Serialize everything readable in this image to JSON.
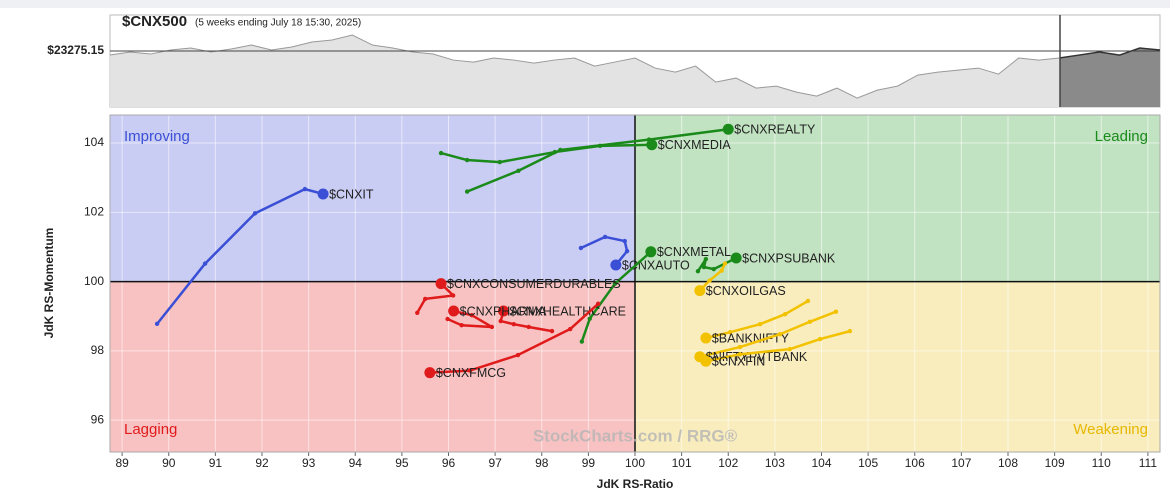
{
  "chart_data": [
    {
      "type": "line",
      "title": "$CNX500",
      "subtitle": "(5 weeks ending July 18 15:30, 2025)",
      "color": "#555555",
      "values": [
        23210,
        23258,
        23226,
        23290,
        23322,
        23258,
        23306,
        23370,
        23290,
        23338,
        23418,
        23450,
        23530,
        23370,
        23322,
        23258,
        23226,
        23130,
        23098,
        23162,
        23130,
        23082,
        23130,
        23162,
        23034,
        23098,
        23162,
        23002,
        22938,
        23034,
        22778,
        22842,
        22682,
        22714,
        22618,
        22554,
        22682,
        22522,
        22650,
        22714,
        22890,
        22938,
        22970,
        23002,
        22906,
        23162,
        23130,
        23162,
        23210,
        23258,
        23210,
        23322,
        23290
      ],
      "ylim": [
        22380,
        23850
      ],
      "reference_line": {
        "value": 23275.15,
        "label": "$23275.15"
      }
    },
    {
      "type": "rrg",
      "xlabel": "JdK RS-Ratio",
      "ylabel": "JdK RS-Momentum",
      "watermark": "StockCharts.com / RRG®",
      "xlim": [
        88.74,
        111.26
      ],
      "ylim": [
        95.08,
        104.81
      ],
      "xticks": [
        89,
        90,
        91,
        92,
        93,
        94,
        95,
        96,
        97,
        98,
        99,
        100,
        101,
        102,
        103,
        104,
        105,
        106,
        107,
        108,
        109,
        110,
        111
      ],
      "yticks": [
        96,
        98,
        100,
        102,
        104
      ],
      "grid": true,
      "center": {
        "x": 100,
        "y": 100
      },
      "quadrants": [
        {
          "name": "Improving",
          "corner": "top-left",
          "color": "#c9ccf3",
          "text_color": "#3a4fd6"
        },
        {
          "name": "Leading",
          "corner": "top-right",
          "color": "#c2e3c2",
          "text_color": "#1a8a1a"
        },
        {
          "name": "Lagging",
          "corner": "bottom-left",
          "color": "#f9c2c2",
          "text_color": "#e01b1b"
        },
        {
          "name": "Weakening",
          "corner": "bottom-right",
          "color": "#f9edbe",
          "text_color": "#e6b800"
        }
      ],
      "series": [
        {
          "name": "$CNXREALTY",
          "color": "#1a8a1a",
          "x": [
            96.4,
            97.5,
            98.4,
            100.3,
            102.0
          ],
          "y": [
            102.6,
            103.2,
            103.8,
            104.1,
            104.4
          ]
        },
        {
          "name": "$CNXMEDIA",
          "color": "#1a8a1a",
          "x": [
            95.84,
            96.4,
            97.1,
            98.28,
            99.25,
            100.36
          ],
          "y": [
            103.71,
            103.51,
            103.45,
            103.74,
            103.92,
            103.95
          ]
        },
        {
          "name": "$CNXIT",
          "color": "#3a4fd6",
          "x": [
            89.75,
            90.78,
            91.85,
            92.92,
            93.31
          ],
          "y": [
            98.78,
            100.52,
            101.97,
            102.67,
            102.53
          ]
        },
        {
          "name": "$CNXAUTO",
          "color": "#3a4fd6",
          "x": [
            98.84,
            99.36,
            99.78,
            99.83,
            99.59
          ],
          "y": [
            100.97,
            101.29,
            101.17,
            100.88,
            100.48
          ]
        },
        {
          "name": "$CNXMETAL",
          "color": "#1a8a1a",
          "x": [
            98.86,
            99.03,
            99.57,
            100.34
          ],
          "y": [
            98.27,
            98.93,
            99.94,
            100.86
          ]
        },
        {
          "name": "$CNXPSUBANK",
          "color": "#1a8a1a",
          "x": [
            101.35,
            101.52,
            101.48,
            101.69,
            102.17
          ],
          "y": [
            100.3,
            100.65,
            100.42,
            100.36,
            100.68
          ]
        },
        {
          "name": "$CNXCONSUMERDURABLES",
          "color": "#e01b1b",
          "x": [
            95.33,
            95.5,
            96.1,
            95.84
          ],
          "y": [
            99.1,
            99.5,
            99.6,
            99.94
          ]
        },
        {
          "name": "$CNXHEALTHCARE",
          "color": "#e01b1b",
          "x": [
            98.22,
            97.72,
            97.4,
            97.12,
            97.18
          ],
          "y": [
            98.57,
            98.69,
            98.77,
            98.86,
            99.15
          ]
        },
        {
          "name": "$CNXPHARMA",
          "color": "#e01b1b",
          "x": [
            95.98,
            96.28,
            96.93,
            96.5,
            96.11
          ],
          "y": [
            98.92,
            98.74,
            98.69,
            99.03,
            99.15
          ]
        },
        {
          "name": "$CNXFMCG",
          "color": "#e01b1b",
          "x": [
            99.21,
            98.61,
            97.49,
            96.46,
            95.6
          ],
          "y": [
            99.36,
            98.63,
            97.88,
            97.43,
            97.37
          ]
        },
        {
          "name": "$CNXOILGAS",
          "color": "#f2c200",
          "x": [
            101.93,
            101.86,
            101.6,
            101.39
          ],
          "y": [
            100.52,
            100.32,
            100.03,
            99.74
          ]
        },
        {
          "name": "$BANKNIFTY",
          "color": "#f2c200",
          "x": [
            103.71,
            103.22,
            102.68,
            102.04,
            101.52
          ],
          "y": [
            99.44,
            99.06,
            98.77,
            98.54,
            98.37
          ]
        },
        {
          "name": "$NIFTYPVTBANK",
          "color": "#f2c200",
          "x": [
            104.31,
            103.75,
            103.11,
            102.25,
            101.39
          ],
          "y": [
            99.13,
            98.84,
            98.48,
            98.11,
            97.83
          ]
        },
        {
          "name": "$CNXFIN",
          "color": "#f2c200",
          "x": [
            104.61,
            103.97,
            103.32,
            102.25,
            101.52
          ],
          "y": [
            98.57,
            98.34,
            98.05,
            97.9,
            97.7
          ]
        }
      ]
    }
  ]
}
